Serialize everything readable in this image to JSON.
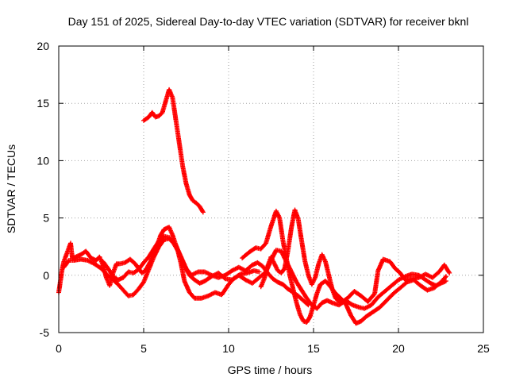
{
  "chart_data": {
    "type": "scatter",
    "title": "Day 151 of 2025, Sidereal Day-to-day VTEC variation (SDTVAR) for receiver bknl",
    "xlabel": "GPS time / hours",
    "ylabel": "SDTVAR / TECUs",
    "xlim": [
      0,
      25
    ],
    "ylim": [
      -5,
      20
    ],
    "xticks": [
      0,
      5,
      10,
      15,
      20,
      25
    ],
    "yticks": [
      -5,
      0,
      5,
      10,
      15,
      20
    ],
    "grid": true,
    "marker": "+",
    "color": "#ff0000",
    "series": [
      {
        "name": "track-high",
        "points": [
          [
            5.0,
            13.5
          ],
          [
            5.3,
            13.8
          ],
          [
            5.5,
            14.2
          ],
          [
            5.7,
            13.8
          ],
          [
            5.9,
            13.9
          ],
          [
            6.1,
            14.2
          ],
          [
            6.3,
            15.2
          ],
          [
            6.5,
            16.2
          ],
          [
            6.7,
            15.5
          ],
          [
            6.9,
            13.5
          ],
          [
            7.1,
            11.5
          ],
          [
            7.3,
            9.5
          ],
          [
            7.5,
            8.0
          ],
          [
            7.7,
            7.0
          ],
          [
            7.9,
            6.5
          ],
          [
            8.1,
            6.3
          ],
          [
            8.3,
            6.0
          ],
          [
            8.5,
            5.5
          ]
        ]
      },
      {
        "name": "track-a",
        "points": [
          [
            0.0,
            -1.5
          ],
          [
            0.1,
            -0.5
          ],
          [
            0.2,
            0.5
          ],
          [
            0.3,
            1.2
          ],
          [
            0.5,
            2.0
          ],
          [
            0.7,
            2.8
          ],
          [
            0.8,
            1.5
          ],
          [
            1.0,
            1.6
          ],
          [
            1.3,
            1.8
          ],
          [
            1.6,
            2.1
          ],
          [
            1.9,
            1.5
          ],
          [
            2.2,
            1.3
          ],
          [
            2.4,
            1.6
          ],
          [
            2.6,
            0.9
          ],
          [
            2.8,
            -0.2
          ],
          [
            3.0,
            -0.9
          ],
          [
            3.2,
            0.2
          ],
          [
            3.4,
            1.0
          ],
          [
            3.6,
            1.0
          ],
          [
            3.9,
            1.1
          ],
          [
            4.2,
            1.4
          ],
          [
            4.5,
            1.0
          ],
          [
            4.7,
            0.6
          ],
          [
            4.9,
            0.2
          ],
          [
            5.1,
            0.4
          ],
          [
            5.4,
            1.2
          ],
          [
            5.7,
            2.2
          ],
          [
            6.0,
            3.5
          ],
          [
            6.2,
            4.0
          ],
          [
            6.5,
            4.2
          ],
          [
            6.7,
            3.5
          ],
          [
            7.0,
            2.2
          ],
          [
            7.2,
            1.0
          ],
          [
            7.4,
            -0.5
          ],
          [
            7.7,
            -1.5
          ],
          [
            8.0,
            -2.0
          ],
          [
            8.4,
            -2.0
          ],
          [
            8.8,
            -1.8
          ],
          [
            9.2,
            -1.5
          ],
          [
            9.6,
            -1.7
          ],
          [
            10.0,
            -0.8
          ],
          [
            10.3,
            -0.3
          ],
          [
            10.7,
            0.1
          ],
          [
            11.1,
            0.2
          ],
          [
            11.5,
            0.4
          ],
          [
            11.8,
            0.3
          ]
        ]
      },
      {
        "name": "track-b",
        "points": [
          [
            0.3,
            0.7
          ],
          [
            0.6,
            1.3
          ],
          [
            0.9,
            1.3
          ],
          [
            1.3,
            1.4
          ],
          [
            1.7,
            1.3
          ],
          [
            2.1,
            1.0
          ],
          [
            2.5,
            0.6
          ],
          [
            2.8,
            0.1
          ],
          [
            3.2,
            -0.4
          ],
          [
            3.5,
            -0.8
          ],
          [
            3.8,
            -1.3
          ],
          [
            4.1,
            -1.8
          ],
          [
            4.4,
            -1.7
          ],
          [
            4.7,
            -1.2
          ],
          [
            5.0,
            -0.6
          ],
          [
            5.3,
            0.5
          ],
          [
            5.6,
            1.6
          ],
          [
            5.9,
            2.5
          ],
          [
            6.2,
            3.1
          ],
          [
            6.5,
            3.2
          ],
          [
            6.9,
            2.6
          ],
          [
            7.2,
            1.6
          ],
          [
            7.5,
            0.6
          ],
          [
            7.8,
            0.0
          ],
          [
            8.2,
            0.3
          ],
          [
            8.6,
            0.3
          ],
          [
            9.0,
            0.0
          ],
          [
            9.4,
            -0.2
          ],
          [
            9.8,
            0.0
          ],
          [
            10.2,
            0.4
          ],
          [
            10.6,
            0.7
          ],
          [
            11.0,
            0.4
          ],
          [
            11.4,
            0.9
          ],
          [
            11.7,
            1.1
          ],
          [
            12.0,
            0.8
          ],
          [
            12.3,
            0.2
          ],
          [
            12.6,
            -0.3
          ],
          [
            12.9,
            -0.6
          ],
          [
            13.2,
            -0.8
          ],
          [
            13.5,
            -1.2
          ],
          [
            13.8,
            -1.5
          ],
          [
            14.1,
            -1.8
          ],
          [
            14.4,
            -2.2
          ],
          [
            14.7,
            -2.6
          ]
        ]
      },
      {
        "name": "track-c",
        "points": [
          [
            2.6,
            1.2
          ],
          [
            2.9,
            0.6
          ],
          [
            3.2,
            -0.1
          ],
          [
            3.5,
            -0.4
          ],
          [
            3.8,
            -0.2
          ],
          [
            4.1,
            0.3
          ],
          [
            4.4,
            0.2
          ],
          [
            4.7,
            0.5
          ],
          [
            5.0,
            1.1
          ],
          [
            5.3,
            1.6
          ],
          [
            5.6,
            2.3
          ],
          [
            5.9,
            3.0
          ],
          [
            6.2,
            3.4
          ],
          [
            6.5,
            3.3
          ],
          [
            6.8,
            2.7
          ],
          [
            7.1,
            1.9
          ],
          [
            7.4,
            0.8
          ],
          [
            7.7,
            0.0
          ],
          [
            8.0,
            -0.4
          ],
          [
            8.3,
            -0.7
          ],
          [
            8.6,
            -0.5
          ],
          [
            9.0,
            -0.1
          ],
          [
            9.4,
            0.2
          ],
          [
            9.8,
            -0.3
          ],
          [
            10.2,
            -0.4
          ],
          [
            10.6,
            0.0
          ],
          [
            11.0,
            -0.4
          ],
          [
            11.4,
            -0.7
          ],
          [
            11.8,
            -0.2
          ],
          [
            12.2,
            0.3
          ],
          [
            12.5,
            1.3
          ],
          [
            12.8,
            2.2
          ],
          [
            13.1,
            2.1
          ],
          [
            13.4,
            1.2
          ],
          [
            13.7,
            0.3
          ],
          [
            14.0,
            -0.6
          ],
          [
            14.3,
            -1.3
          ],
          [
            14.6,
            -2.0
          ],
          [
            14.9,
            -2.6
          ],
          [
            15.2,
            -2.9
          ],
          [
            15.5,
            -2.4
          ],
          [
            15.8,
            -2.2
          ],
          [
            16.1,
            -2.4
          ],
          [
            16.5,
            -2.6
          ],
          [
            16.9,
            -2.2
          ],
          [
            17.3,
            -2.6
          ],
          [
            17.7,
            -2.8
          ],
          [
            18.0,
            -2.9
          ],
          [
            18.4,
            -2.6
          ],
          [
            18.8,
            -1.9
          ],
          [
            19.2,
            -1.4
          ],
          [
            19.6,
            -0.9
          ],
          [
            20.0,
            -0.4
          ],
          [
            20.4,
            -0.1
          ],
          [
            20.8,
            0.1
          ],
          [
            21.2,
            0.0
          ],
          [
            21.6,
            -0.4
          ],
          [
            21.9,
            -0.7
          ],
          [
            22.2,
            -0.9
          ],
          [
            22.5,
            -0.7
          ],
          [
            22.8,
            -0.5
          ]
        ]
      },
      {
        "name": "track-d",
        "points": [
          [
            10.8,
            1.5
          ],
          [
            11.2,
            2.0
          ],
          [
            11.6,
            2.4
          ],
          [
            11.9,
            2.3
          ],
          [
            12.2,
            2.8
          ],
          [
            12.5,
            4.3
          ],
          [
            12.8,
            5.6
          ],
          [
            13.0,
            5.0
          ],
          [
            13.2,
            3.0
          ],
          [
            13.4,
            1.5
          ],
          [
            13.6,
            0.0
          ],
          [
            13.8,
            -1.2
          ],
          [
            14.0,
            -2.4
          ],
          [
            14.2,
            -3.4
          ],
          [
            14.4,
            -4.0
          ],
          [
            14.6,
            -4.1
          ],
          [
            14.8,
            -3.6
          ],
          [
            15.0,
            -2.6
          ],
          [
            15.2,
            -1.6
          ],
          [
            15.4,
            -0.8
          ],
          [
            15.7,
            -0.5
          ],
          [
            16.0,
            -1.0
          ],
          [
            16.3,
            -1.6
          ],
          [
            16.6,
            -2.0
          ],
          [
            16.9,
            -2.5
          ],
          [
            17.2,
            -3.5
          ],
          [
            17.5,
            -4.2
          ],
          [
            17.8,
            -4.0
          ],
          [
            18.1,
            -3.6
          ],
          [
            18.5,
            -3.2
          ],
          [
            18.9,
            -2.8
          ],
          [
            19.3,
            -2.2
          ],
          [
            19.7,
            -1.6
          ],
          [
            20.1,
            -1.1
          ],
          [
            20.5,
            -0.6
          ],
          [
            20.9,
            -0.4
          ],
          [
            21.3,
            -0.9
          ],
          [
            21.7,
            -1.3
          ],
          [
            22.1,
            -1.1
          ],
          [
            22.5,
            -0.6
          ],
          [
            22.8,
            -0.1
          ]
        ]
      },
      {
        "name": "track-e",
        "points": [
          [
            11.9,
            -1.0
          ],
          [
            12.1,
            -0.3
          ],
          [
            12.3,
            0.8
          ],
          [
            12.5,
            1.6
          ],
          [
            12.7,
            1.0
          ],
          [
            12.9,
            0.4
          ],
          [
            13.1,
            0.2
          ],
          [
            13.3,
            0.6
          ],
          [
            13.5,
            2.2
          ],
          [
            13.7,
            4.2
          ],
          [
            13.9,
            5.7
          ],
          [
            14.1,
            4.9
          ],
          [
            14.3,
            3.0
          ],
          [
            14.5,
            1.2
          ],
          [
            14.7,
            0.0
          ],
          [
            14.9,
            -0.8
          ],
          [
            15.1,
            -0.2
          ],
          [
            15.3,
            1.0
          ],
          [
            15.5,
            1.8
          ],
          [
            15.7,
            1.2
          ],
          [
            15.9,
            0.0
          ],
          [
            16.1,
            -1.2
          ],
          [
            16.3,
            -2.0
          ],
          [
            16.6,
            -2.4
          ],
          [
            17.0,
            -2.0
          ],
          [
            17.4,
            -1.4
          ],
          [
            17.8,
            -1.8
          ],
          [
            18.2,
            -2.3
          ],
          [
            18.6,
            -1.6
          ],
          [
            18.8,
            0.4
          ],
          [
            19.1,
            1.4
          ],
          [
            19.5,
            1.2
          ],
          [
            19.8,
            0.6
          ],
          [
            20.1,
            0.2
          ],
          [
            20.4,
            -0.4
          ],
          [
            20.8,
            -0.3
          ],
          [
            21.2,
            -0.2
          ],
          [
            21.6,
            0.1
          ],
          [
            22.0,
            -0.2
          ],
          [
            22.4,
            0.3
          ],
          [
            22.7,
            0.9
          ],
          [
            23.0,
            0.2
          ]
        ]
      }
    ]
  }
}
